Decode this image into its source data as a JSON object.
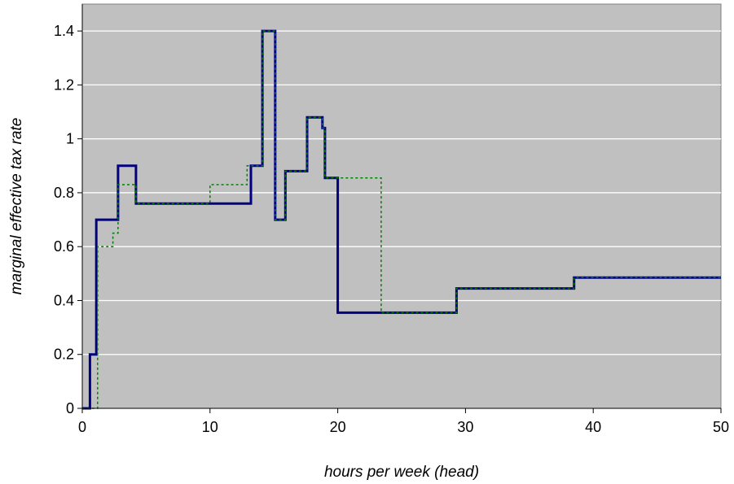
{
  "chart_data": {
    "type": "line",
    "title": "",
    "xlabel": "hours per week (head)",
    "ylabel": "marginal effective tax rate",
    "xlim": [
      0,
      50
    ],
    "ylim": [
      0,
      1.5
    ],
    "xticks": [
      0,
      10,
      20,
      30,
      40,
      50
    ],
    "yticks": [
      0,
      0.2,
      0.4,
      0.6,
      0.8,
      1,
      1.2,
      1.4
    ],
    "grid": "horizontal",
    "legend": "none",
    "colors": {
      "plot_bg": "#c0c0c0",
      "grid": "#ffffff",
      "series_1": "#000080",
      "series_2": "#008000"
    },
    "series": [
      {
        "line_style": "solid",
        "step_points": [
          [
            0,
            0
          ],
          [
            0.6,
            0
          ],
          [
            0.6,
            0.2
          ],
          [
            1.1,
            0.2
          ],
          [
            1.1,
            0.7
          ],
          [
            2.8,
            0.7
          ],
          [
            2.8,
            0.9
          ],
          [
            4.2,
            0.9
          ],
          [
            4.2,
            0.76
          ],
          [
            13.2,
            0.76
          ],
          [
            13.2,
            0.9
          ],
          [
            14.1,
            0.9
          ],
          [
            14.1,
            1.4
          ],
          [
            15.1,
            1.4
          ],
          [
            15.1,
            0.7
          ],
          [
            15.9,
            0.7
          ],
          [
            15.9,
            0.88
          ],
          [
            17.6,
            0.88
          ],
          [
            17.6,
            1.08
          ],
          [
            18.8,
            1.08
          ],
          [
            18.8,
            1.04
          ],
          [
            19.0,
            1.04
          ],
          [
            19.0,
            0.855
          ],
          [
            20.0,
            0.855
          ],
          [
            20.0,
            0.355
          ],
          [
            29.3,
            0.355
          ],
          [
            29.3,
            0.445
          ],
          [
            38.5,
            0.445
          ],
          [
            38.5,
            0.485
          ],
          [
            50,
            0.485
          ]
        ]
      },
      {
        "line_style": "dotted",
        "step_points": [
          [
            0,
            0
          ],
          [
            1.2,
            0
          ],
          [
            1.2,
            0.6
          ],
          [
            2.4,
            0.6
          ],
          [
            2.4,
            0.65
          ],
          [
            2.8,
            0.65
          ],
          [
            2.8,
            0.83
          ],
          [
            4.2,
            0.83
          ],
          [
            4.2,
            0.76
          ],
          [
            10.0,
            0.76
          ],
          [
            10.0,
            0.83
          ],
          [
            12.9,
            0.83
          ],
          [
            12.9,
            0.9
          ],
          [
            14.1,
            0.9
          ],
          [
            14.1,
            1.4
          ],
          [
            15.1,
            1.4
          ],
          [
            15.1,
            0.7
          ],
          [
            15.9,
            0.7
          ],
          [
            15.9,
            0.88
          ],
          [
            17.6,
            0.88
          ],
          [
            17.6,
            1.08
          ],
          [
            18.8,
            1.08
          ],
          [
            18.8,
            1.04
          ],
          [
            19.0,
            1.04
          ],
          [
            19.0,
            0.855
          ],
          [
            23.4,
            0.855
          ],
          [
            23.4,
            0.355
          ],
          [
            29.3,
            0.355
          ],
          [
            29.3,
            0.445
          ],
          [
            38.5,
            0.445
          ],
          [
            38.5,
            0.485
          ],
          [
            50,
            0.485
          ]
        ]
      }
    ]
  }
}
